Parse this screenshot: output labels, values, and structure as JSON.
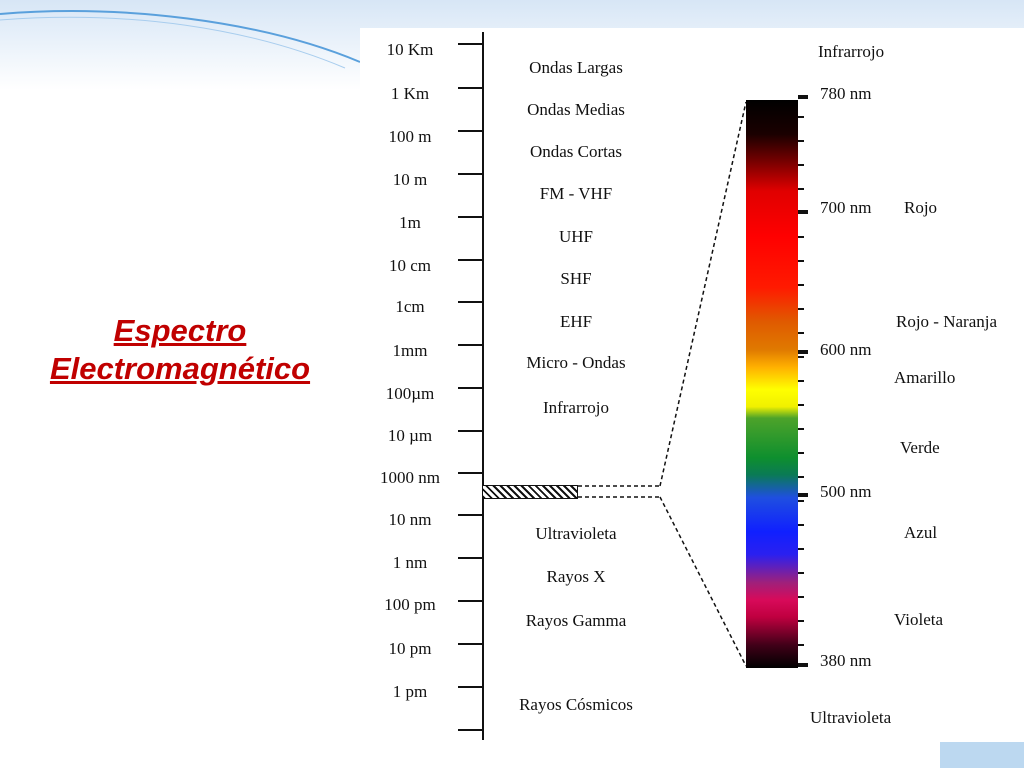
{
  "title": {
    "line1": "Espectro",
    "line2": "Electromagnético"
  },
  "scale": {
    "labels": [
      "10 Km",
      "1 Km",
      "100 m",
      "10 m",
      "1m",
      "10 cm",
      "1cm",
      "1mm",
      "100µm",
      "10 µm",
      "1000 nm",
      "10 nm",
      "1 nm",
      "100 pm",
      "10 pm",
      "1 pm"
    ]
  },
  "bands": {
    "names": [
      "Ondas Largas",
      "Ondas Medias",
      "Ondas Cortas",
      "FM - VHF",
      "UHF",
      "SHF",
      "EHF",
      "Micro - Ondas",
      "Infrarrojo",
      "Ultravioleta",
      "Rayos X",
      "Rayos Gamma",
      "Rayos Cósmicos"
    ]
  },
  "visible": {
    "top_label": "Infrarrojo",
    "bottom_label": "Ultravioleta",
    "wavelengths": [
      "780 nm",
      "700 nm",
      "600 nm",
      "500 nm",
      "380 nm"
    ],
    "colors": [
      "Rojo",
      "Rojo - Naranja",
      "Amarillo",
      "Verde",
      "Azul",
      "Violeta"
    ]
  }
}
